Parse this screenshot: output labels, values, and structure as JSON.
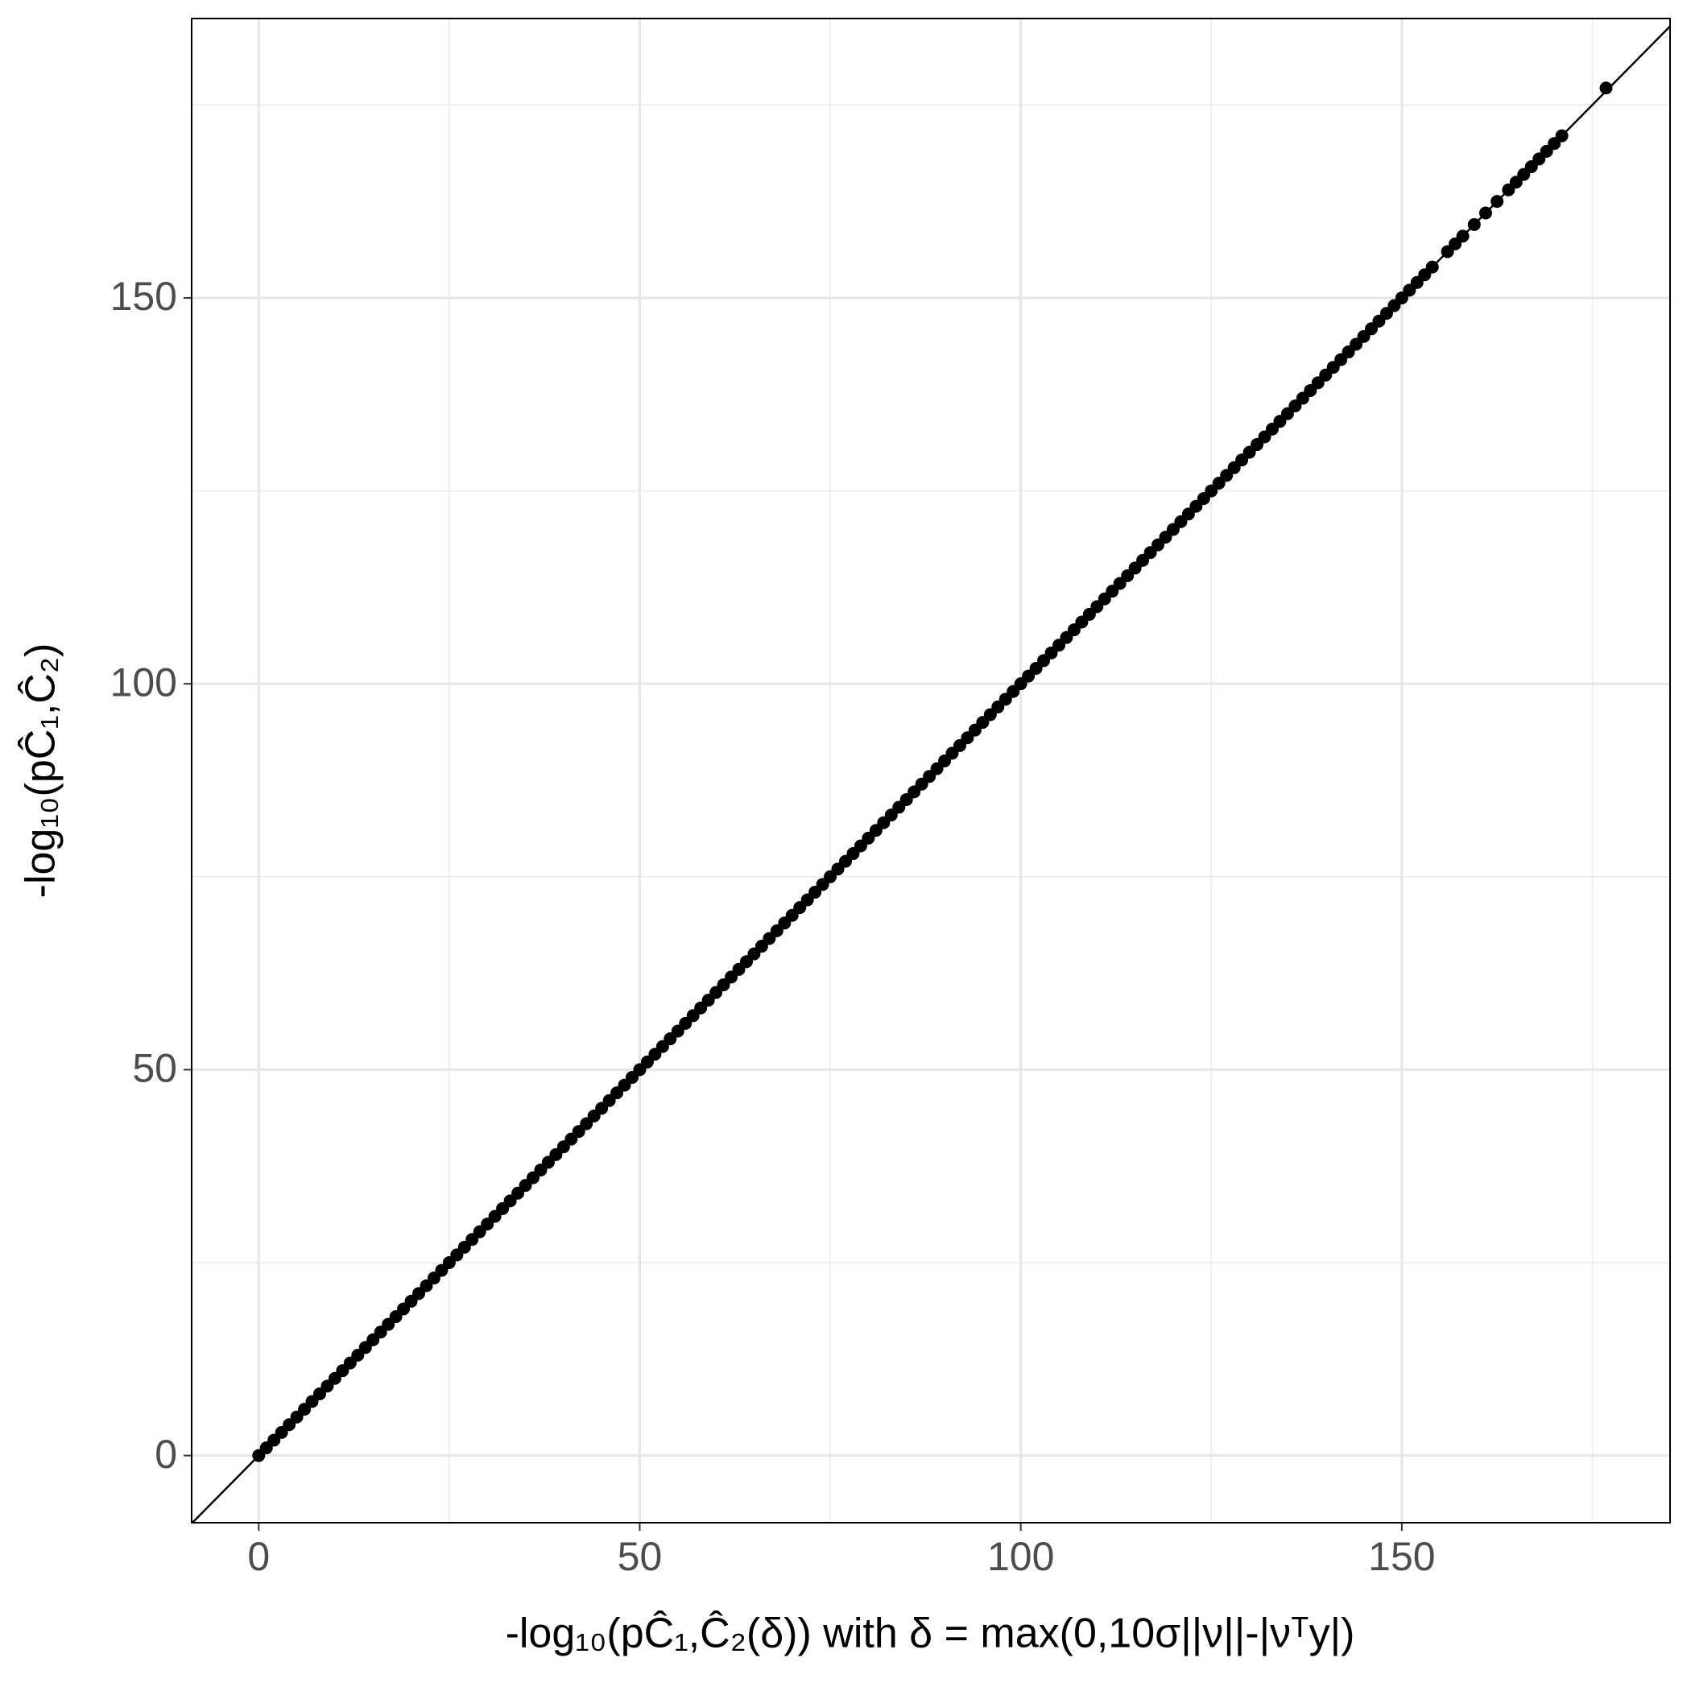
{
  "chart_data": {
    "type": "scatter",
    "x_label": "-log₁₀(pĈ₁,Ĉ₂(δ)) with δ = max(0,10σ||ν||-|νᵀy|)",
    "y_label": "-log₁₀(pĈ₁,Ĉ₂)",
    "xlim": [
      -8.8,
      185.2
    ],
    "ylim": [
      -8.7,
      186.2
    ],
    "xticks": [
      0,
      50,
      100,
      150
    ],
    "yticks": [
      0,
      50,
      100,
      150
    ],
    "x_minor_ticks": [
      25,
      75,
      125,
      175
    ],
    "y_minor_ticks": [
      25,
      75,
      125,
      175
    ],
    "grid": true,
    "color": "#000000",
    "reference_line": {
      "slope": 1,
      "intercept": 0
    },
    "series": [
      {
        "color": "#000000",
        "x": [
          0,
          1,
          2,
          3,
          4,
          5,
          6,
          7,
          8,
          9,
          10,
          11,
          12,
          13,
          14,
          15,
          16,
          17,
          18,
          19,
          20,
          21,
          22,
          23,
          24,
          25,
          26,
          27,
          28,
          29,
          30,
          31,
          32,
          33,
          34,
          35,
          36,
          37,
          38,
          39,
          40,
          41,
          42,
          43,
          44,
          45,
          46,
          47,
          48,
          49,
          50,
          51,
          52,
          53,
          54,
          55,
          56,
          57,
          58,
          59,
          60,
          61,
          62,
          63,
          64,
          65,
          66,
          67,
          68,
          69,
          70,
          71,
          72,
          73,
          74,
          75,
          76,
          77,
          78,
          79,
          80,
          81,
          82,
          83,
          84,
          85,
          86,
          87,
          88,
          89,
          90,
          91,
          92,
          93,
          94,
          95,
          96,
          97,
          98,
          99,
          100,
          101,
          102,
          103,
          104,
          105,
          106,
          107,
          108,
          109,
          110,
          111,
          112,
          113,
          114,
          115,
          116,
          117,
          118,
          119,
          120,
          121,
          122,
          123,
          124,
          125,
          126,
          127,
          128,
          129,
          130,
          131,
          132,
          133,
          134,
          135,
          136,
          137,
          138,
          139,
          140,
          141,
          142,
          143,
          144,
          145,
          146,
          147,
          148,
          149,
          150,
          151,
          152,
          153,
          154,
          156,
          157,
          158,
          159.5,
          161,
          162.5,
          164,
          165,
          166,
          167,
          168,
          169,
          170,
          171,
          176.8
        ],
        "values": [
          0,
          1,
          2,
          3,
          4,
          5,
          6,
          7,
          8,
          9,
          10,
          11,
          12,
          13,
          14,
          15,
          16,
          17,
          18,
          19,
          20,
          21,
          22,
          23,
          24,
          25,
          26,
          27,
          28,
          29,
          30,
          31,
          32,
          33,
          34,
          35,
          36,
          37,
          38,
          39,
          40,
          41,
          42,
          43,
          44,
          45,
          46,
          47,
          48,
          49,
          50,
          51,
          52,
          53,
          54,
          55,
          56,
          57,
          58,
          59,
          60,
          61,
          62,
          63,
          64,
          65,
          66,
          67,
          68,
          69,
          70,
          71,
          72,
          73,
          74,
          75,
          76,
          77,
          78,
          79,
          80,
          81,
          82,
          83,
          84,
          85,
          86,
          87,
          88,
          89,
          90,
          91,
          92,
          93,
          94,
          95,
          96,
          97,
          98,
          99,
          100,
          101,
          102,
          103,
          104,
          105,
          106,
          107,
          108,
          109,
          110,
          111,
          112,
          113,
          114,
          115,
          116,
          117,
          118,
          119,
          120,
          121,
          122,
          123,
          124,
          125,
          126,
          127,
          128,
          129,
          130,
          131,
          132,
          133,
          134,
          135,
          136,
          137,
          138,
          139,
          140,
          141,
          142,
          143,
          144,
          145,
          146,
          147,
          148,
          149,
          150,
          151,
          152,
          153,
          154,
          156,
          157,
          158,
          159.5,
          161,
          162.5,
          164,
          165,
          166,
          167,
          168,
          169,
          170,
          171,
          177.2
        ]
      }
    ]
  }
}
